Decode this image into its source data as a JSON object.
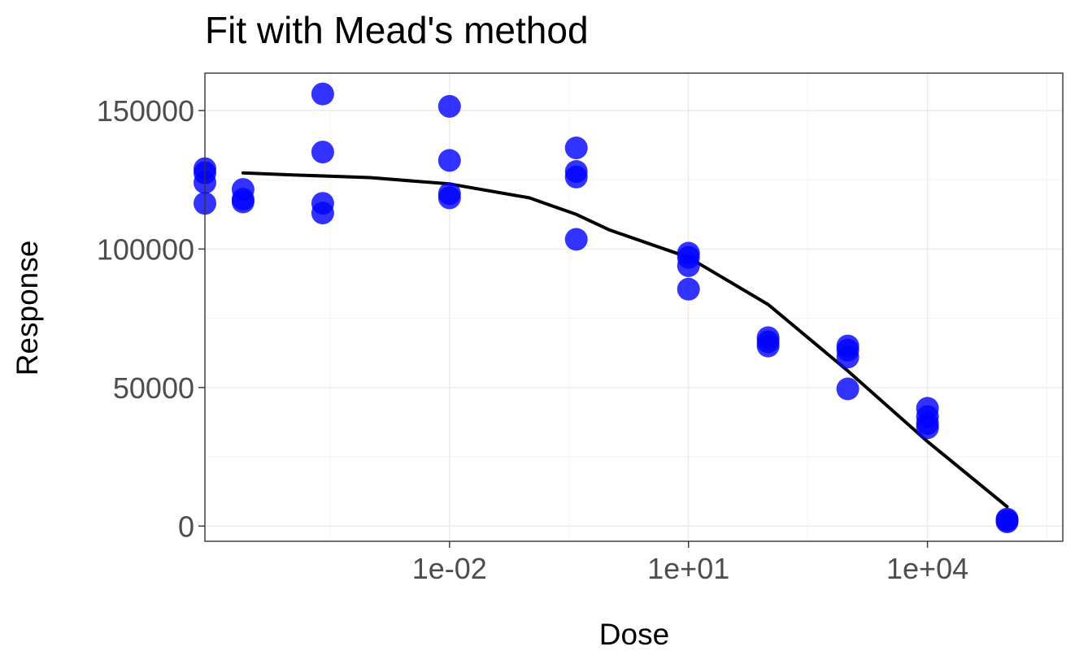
{
  "chart_data": {
    "type": "scatter",
    "title": "Fit with Mead's method",
    "xlabel": "Dose",
    "ylabel": "Response",
    "x_scale": "log10",
    "xlim": [
      8.5e-06,
      500000
    ],
    "ylim": [
      -5500,
      163500
    ],
    "x_ticks": [
      {
        "value": 0.01,
        "label": "1e-02"
      },
      {
        "value": 10,
        "label": "1e+01"
      },
      {
        "value": 10000,
        "label": "1e+04"
      }
    ],
    "y_ticks": [
      {
        "value": 0,
        "label": "0"
      },
      {
        "value": 50000,
        "label": "50000"
      },
      {
        "value": 100000,
        "label": "100000"
      },
      {
        "value": 150000,
        "label": "150000"
      }
    ],
    "grid": true,
    "point_color": "#0000ff",
    "line_color": "#000000",
    "points": [
      {
        "x": 8.5e-06,
        "y": 129000
      },
      {
        "x": 8.5e-06,
        "y": 127500
      },
      {
        "x": 8.5e-06,
        "y": 124000
      },
      {
        "x": 8.5e-06,
        "y": 116500
      },
      {
        "x": 2.56e-05,
        "y": 121500
      },
      {
        "x": 2.56e-05,
        "y": 118000
      },
      {
        "x": 2.56e-05,
        "y": 117000
      },
      {
        "x": 0.000256,
        "y": 156000
      },
      {
        "x": 0.000256,
        "y": 135000
      },
      {
        "x": 0.000256,
        "y": 116500
      },
      {
        "x": 0.000256,
        "y": 113000
      },
      {
        "x": 0.01,
        "y": 151500
      },
      {
        "x": 0.01,
        "y": 132000
      },
      {
        "x": 0.01,
        "y": 120000
      },
      {
        "x": 0.01,
        "y": 118500
      },
      {
        "x": 0.39,
        "y": 136500
      },
      {
        "x": 0.39,
        "y": 128000
      },
      {
        "x": 0.39,
        "y": 126000
      },
      {
        "x": 0.39,
        "y": 103500
      },
      {
        "x": 10,
        "y": 98500
      },
      {
        "x": 10,
        "y": 97000
      },
      {
        "x": 10,
        "y": 94000
      },
      {
        "x": 10,
        "y": 85500
      },
      {
        "x": 100,
        "y": 68000
      },
      {
        "x": 100,
        "y": 66500
      },
      {
        "x": 100,
        "y": 65000
      },
      {
        "x": 1000,
        "y": 65000
      },
      {
        "x": 1000,
        "y": 63500
      },
      {
        "x": 1000,
        "y": 61000
      },
      {
        "x": 1000,
        "y": 49500
      },
      {
        "x": 10000,
        "y": 42500
      },
      {
        "x": 10000,
        "y": 39500
      },
      {
        "x": 10000,
        "y": 37000
      },
      {
        "x": 10000,
        "y": 35500
      },
      {
        "x": 100000,
        "y": 2500
      },
      {
        "x": 100000,
        "y": 2000
      },
      {
        "x": 100000,
        "y": 1500
      }
    ],
    "fit_curve": {
      "x": [
        2.56e-05,
        0.0001,
        0.001,
        0.01,
        0.1,
        0.39,
        1,
        10,
        100,
        1000,
        10000,
        100000
      ],
      "y": [
        127500,
        126800,
        125800,
        123500,
        118500,
        112500,
        107000,
        97000,
        80000,
        56000,
        30500,
        7000
      ]
    }
  }
}
